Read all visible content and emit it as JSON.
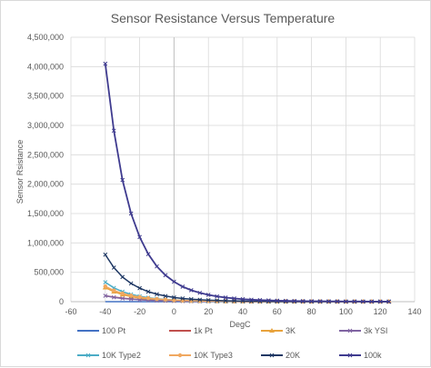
{
  "chart_data": {
    "type": "line",
    "title": "Sensor Resistance Versus Temperature",
    "xlabel": "DegC",
    "ylabel": "Sensor Rsistance",
    "xlim": [
      -60,
      140
    ],
    "ylim": [
      0,
      4500000
    ],
    "x_ticks": [
      -60,
      -40,
      -20,
      0,
      20,
      40,
      60,
      80,
      100,
      120,
      140
    ],
    "y_ticks": [
      0,
      500000,
      1000000,
      1500000,
      2000000,
      2500000,
      3000000,
      3500000,
      4000000,
      4500000
    ],
    "x_tick_labels": [
      "-60",
      "-40",
      "-20",
      "0",
      "20",
      "40",
      "60",
      "80",
      "100",
      "120",
      "140"
    ],
    "y_tick_labels": [
      "0",
      "500,000",
      "1,000,000",
      "1,500,000",
      "2,000,000",
      "2,500,000",
      "3,000,000",
      "3,500,000",
      "4,000,000",
      "4,500,000"
    ],
    "grid": true,
    "legend_position": "bottom",
    "x": [
      -40,
      -35,
      -30,
      -25,
      -20,
      -15,
      -10,
      -5,
      0,
      5,
      10,
      15,
      20,
      25,
      30,
      35,
      40,
      45,
      50,
      55,
      60,
      65,
      70,
      75,
      80,
      85,
      90,
      95,
      100,
      105,
      110,
      115,
      120,
      125
    ],
    "series": [
      {
        "name": "100 Pt",
        "color": "#4472c4",
        "marker": "none",
        "values": [
          84,
          86,
          88,
          90,
          92,
          94,
          96,
          98,
          100,
          102,
          104,
          106,
          108,
          110,
          112,
          114,
          116,
          117,
          119,
          121,
          123,
          125,
          127,
          129,
          131,
          133,
          135,
          137,
          139,
          141,
          142,
          144,
          146,
          148
        ]
      },
      {
        "name": "1k Pt",
        "color": "#c0504d",
        "marker": "none",
        "values": [
          100000,
          78000,
          60000,
          47000,
          36000,
          28000,
          22000,
          17000,
          13000,
          10500,
          8500,
          6800,
          5500,
          4500,
          3700,
          3000,
          2500,
          2100,
          1750,
          1450,
          1200,
          1000,
          850,
          720,
          610,
          520,
          450,
          390,
          340,
          300,
          260,
          230,
          200,
          180
        ]
      },
      {
        "name": "3K",
        "color": "#e8a33d",
        "marker": "triangle",
        "values": [
          240000,
          170000,
          120000,
          86000,
          62000,
          45000,
          34000,
          25000,
          19000,
          15000,
          11500,
          9000,
          7100,
          5600,
          4500,
          3600,
          2900,
          2400,
          2000,
          1650,
          1350,
          1130,
          950,
          800,
          680,
          580,
          500,
          430,
          370,
          320,
          280,
          245,
          215,
          190
        ]
      },
      {
        "name": "3k YSI",
        "color": "#8064a2",
        "marker": "x",
        "values": [
          100000,
          74000,
          55000,
          42000,
          32000,
          25000,
          19000,
          15000,
          12000,
          9500,
          7700,
          6200,
          5100,
          4200,
          3500,
          2900,
          2400,
          2000,
          1700,
          1450,
          1250,
          1070,
          920,
          800,
          700,
          610,
          540,
          480,
          420,
          380,
          340,
          300,
          270,
          245
        ]
      },
      {
        "name": "10K Type2",
        "color": "#4bacc6",
        "marker": "x",
        "values": [
          330000,
          235000,
          170000,
          125000,
          92000,
          68000,
          51000,
          38000,
          29000,
          22500,
          17500,
          13700,
          10800,
          8600,
          6900,
          5600,
          4500,
          3700,
          3000,
          2500,
          2100,
          1750,
          1500,
          1250,
          1080,
          920,
          790,
          680,
          590,
          510,
          450,
          390,
          350,
          310
        ]
      },
      {
        "name": "10K Type3",
        "color": "#f0a860",
        "marker": "circle",
        "values": [
          260000,
          190000,
          140000,
          105000,
          79000,
          60000,
          46000,
          35000,
          27000,
          21000,
          16500,
          13000,
          10500,
          8400,
          6800,
          5500,
          4500,
          3700,
          3100,
          2600,
          2200,
          1850,
          1570,
          1340,
          1150,
          990,
          850,
          740,
          650,
          570,
          500,
          440,
          390,
          350
        ]
      },
      {
        "name": "20K",
        "color": "#1f3864",
        "marker": "x",
        "values": [
          800000,
          580000,
          420000,
          310000,
          230000,
          170000,
          128000,
          96000,
          72000,
          55000,
          42000,
          33000,
          26000,
          20500,
          16000,
          12800,
          10300,
          8300,
          6800,
          5500,
          4600,
          3800,
          3200,
          2700,
          2300,
          1950,
          1650,
          1420,
          1220,
          1060,
          920,
          800,
          700,
          620
        ]
      },
      {
        "name": "100k",
        "color": "#3f3b8f",
        "marker": "x",
        "values": [
          4050000,
          2910000,
          2070000,
          1500000,
          1100000,
          810000,
          600000,
          450000,
          340000,
          255000,
          195000,
          150000,
          116000,
          90000,
          70000,
          55000,
          43000,
          34000,
          27000,
          22000,
          17600,
          14300,
          11700,
          9600,
          7900,
          6600,
          5500,
          4600,
          3900,
          3300,
          2800,
          2400,
          2050,
          1750
        ]
      }
    ]
  }
}
